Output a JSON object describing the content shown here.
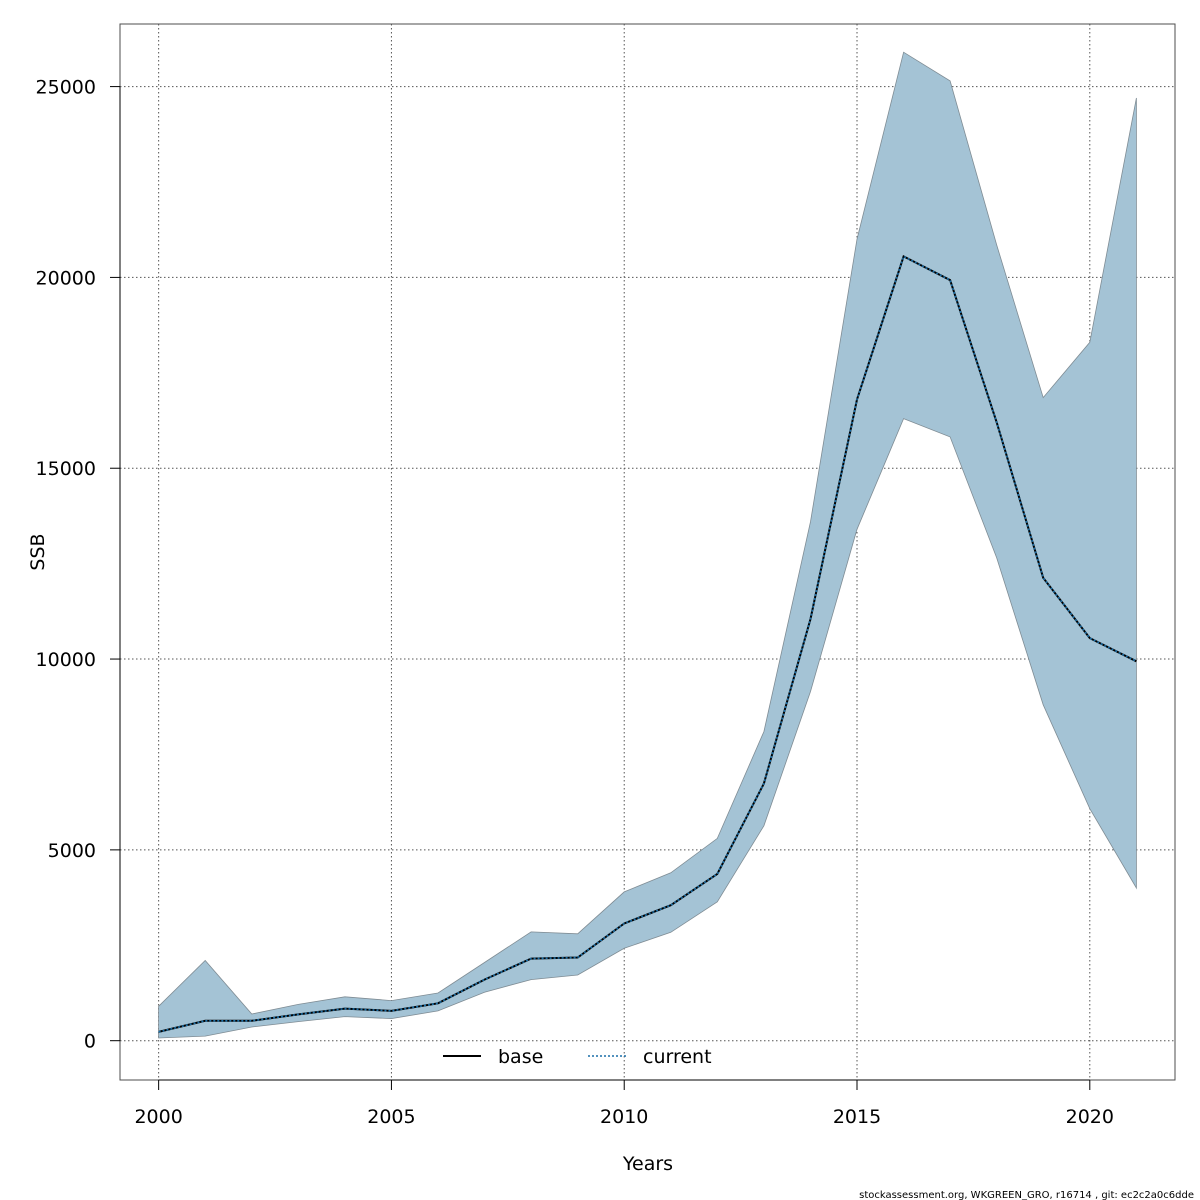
{
  "chart_data": {
    "type": "line",
    "title": "",
    "xlabel": "Years",
    "ylabel": "SSB",
    "xlim": [
      1999.17,
      2021.83
    ],
    "ylim": [
      -1030,
      26640
    ],
    "x_ticks": [
      2000,
      2005,
      2010,
      2015,
      2020
    ],
    "y_ticks": [
      0,
      5000,
      10000,
      15000,
      20000,
      25000
    ],
    "x_tick_labels": [
      "2000",
      "2005",
      "2010",
      "2015",
      "2020"
    ],
    "y_tick_labels": [
      "0",
      "5000",
      "10000",
      "15000",
      "20000",
      "25000"
    ],
    "grid": true,
    "legend_position": "bottom-center",
    "x": [
      2000,
      2001,
      2002,
      2003,
      2004,
      2005,
      2006,
      2007,
      2008,
      2009,
      2010,
      2011,
      2012,
      2013,
      2014,
      2015,
      2016,
      2017,
      2018,
      2019,
      2020,
      2021
    ],
    "band": {
      "upper": [
        900,
        2100,
        700,
        950,
        1150,
        1050,
        1250,
        2050,
        2850,
        2800,
        3900,
        4400,
        5300,
        8100,
        13600,
        21000,
        25900,
        25150,
        20850,
        16850,
        18300,
        24700
      ],
      "lower": [
        70,
        120,
        360,
        500,
        630,
        580,
        780,
        1270,
        1600,
        1720,
        2420,
        2840,
        3640,
        5630,
        9150,
        13400,
        16300,
        15820,
        12650,
        8800,
        6080,
        4000
      ],
      "fill_color": "#a4c3d5",
      "edge_color": "#7f8c94"
    },
    "series": [
      {
        "name": "base",
        "color": "#000000",
        "style": "solid",
        "values": [
          230,
          520,
          520,
          690,
          840,
          780,
          980,
          1600,
          2150,
          2180,
          3070,
          3550,
          4370,
          6740,
          11050,
          16800,
          20550,
          19930,
          16200,
          12130,
          10550,
          9940
        ]
      },
      {
        "name": "current",
        "color": "#1a6fa8",
        "style": "dotted",
        "values": [
          230,
          520,
          520,
          690,
          840,
          780,
          980,
          1600,
          2150,
          2180,
          3070,
          3550,
          4370,
          6740,
          11050,
          16800,
          20550,
          19930,
          16200,
          12130,
          10550,
          9940
        ]
      }
    ],
    "footer": "stockassessment.org, WKGREEN_GRO, r16714 , git: ec2c2a0c6dde"
  }
}
